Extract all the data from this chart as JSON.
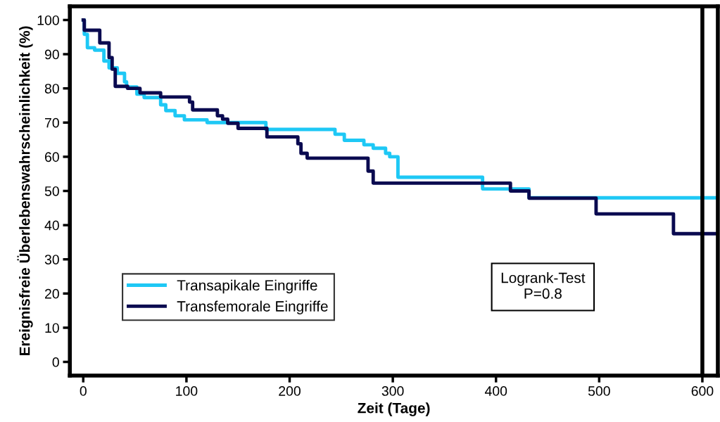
{
  "chart_data": {
    "type": "step",
    "xlabel": "Zeit (Tage)",
    "ylabel": "Ereignisfreie Überlebenswahrscheinlichkeit (%)",
    "xlim": [
      -13,
      615
    ],
    "xticks": [
      0,
      100,
      200,
      300,
      400,
      500,
      600
    ],
    "ylim": [
      -4,
      104
    ],
    "yticks": [
      0,
      10,
      20,
      30,
      40,
      50,
      60,
      70,
      80,
      90,
      100
    ],
    "legend": "bottom left",
    "grid": false,
    "annotations": [
      "Logrank-Test\nP=0.8"
    ],
    "ref_lines": [
      {
        "axis": "x",
        "value": 600,
        "label": null,
        "color": "#000000"
      }
    ],
    "series": [
      {
        "name": "Transapikale Eingriffe",
        "color": "#1ec8f5",
        "x": [
          0,
          1,
          4,
          11,
          20,
          25,
          33,
          40,
          42,
          52,
          59,
          75,
          80,
          89,
          98,
          120,
          177,
          244,
          253,
          272,
          281,
          293,
          297,
          305,
          387,
          432,
          615
        ],
        "values": [
          100,
          95.8,
          91.9,
          91.2,
          88,
          86,
          84.4,
          81.9,
          80.4,
          78.3,
          77.3,
          75.2,
          73.5,
          72,
          70.8,
          70,
          68,
          66.6,
          64.8,
          63.5,
          62.5,
          61,
          60,
          54,
          50.6,
          48,
          48
        ]
      },
      {
        "name": "Transfemorale Eingriffe",
        "color": "#0a0a50",
        "x": [
          0,
          1,
          16,
          25,
          28,
          31,
          43,
          55,
          75,
          103,
          106,
          130,
          135,
          140,
          150,
          178,
          208,
          211,
          217,
          276,
          281,
          414,
          432,
          497,
          572,
          615
        ],
        "values": [
          100,
          97,
          93.3,
          89,
          85.6,
          80.6,
          80,
          78.7,
          77.5,
          76,
          73.7,
          72,
          71,
          69.8,
          68.3,
          65.8,
          63.8,
          61,
          59.6,
          55.8,
          52.3,
          50,
          47.9,
          43.3,
          37.5,
          37.5
        ]
      }
    ]
  }
}
